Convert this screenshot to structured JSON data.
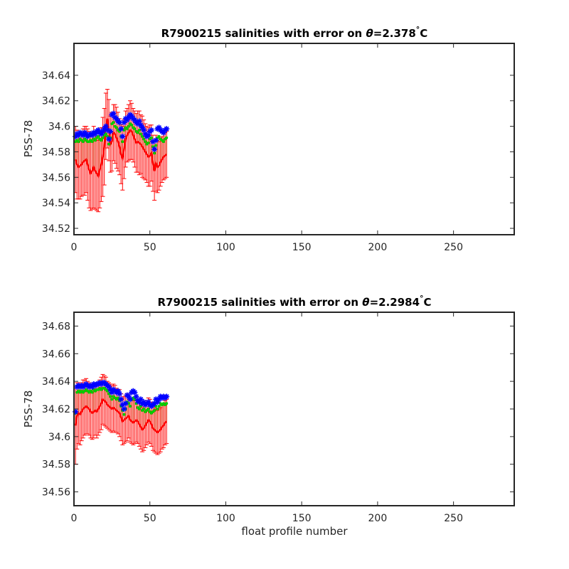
{
  "chart_data": [
    {
      "type": "scatter",
      "title_prefix": "R7900215 salinities with error on ",
      "title_symbol": "θ",
      "title_value": "=2.378",
      "title_unit": "C",
      "xlabel": "",
      "ylabel": "PSS-78",
      "xlim": [
        0,
        290
      ],
      "ylim": [
        34.515,
        34.665
      ],
      "xticks": [
        0,
        50,
        100,
        150,
        200,
        250
      ],
      "xtick_labels": [
        "0",
        "50",
        "100",
        "150",
        "200",
        "250"
      ],
      "yticks": [
        34.52,
        34.54,
        34.56,
        34.58,
        34.6,
        34.62,
        34.64
      ],
      "ytick_labels": [
        "34.52",
        "34.54",
        "34.56",
        "34.58",
        "34.6",
        "34.62",
        "34.64"
      ],
      "grid": false,
      "x": [
        1,
        2,
        3,
        4,
        5,
        6,
        7,
        8,
        9,
        10,
        11,
        12,
        13,
        14,
        15,
        16,
        17,
        18,
        19,
        20,
        21,
        22,
        23,
        24,
        25,
        26,
        27,
        28,
        29,
        30,
        31,
        32,
        33,
        34,
        35,
        36,
        37,
        38,
        39,
        40,
        41,
        42,
        43,
        44,
        45,
        46,
        47,
        48,
        49,
        50,
        51,
        52,
        53,
        54,
        55,
        56,
        57,
        58,
        59,
        60,
        61
      ],
      "series": [
        {
          "color": "#0000ff",
          "marker": "asterisk",
          "values": [
            34.592,
            34.594,
            34.593,
            34.595,
            34.594,
            34.593,
            34.595,
            34.594,
            34.592,
            34.593,
            34.594,
            34.593,
            34.595,
            34.594,
            34.596,
            34.597,
            34.595,
            34.594,
            34.596,
            34.598,
            34.6,
            34.597,
            34.59,
            34.596,
            34.609,
            34.61,
            34.607,
            34.606,
            34.604,
            34.603,
            34.598,
            34.592,
            34.603,
            34.606,
            34.605,
            34.607,
            34.609,
            34.608,
            34.606,
            34.605,
            34.603,
            34.602,
            34.604,
            34.601,
            34.599,
            34.597,
            34.594,
            34.592,
            34.593,
            34.596,
            34.597,
            34.588,
            34.582,
            34.589,
            34.598,
            34.599,
            34.597,
            34.596,
            34.595,
            34.597,
            34.598
          ]
        },
        {
          "color": "#00cc00",
          "marker": "dot",
          "values": [
            34.588,
            34.589,
            34.588,
            34.59,
            34.589,
            34.588,
            34.59,
            34.589,
            34.588,
            34.588,
            34.589,
            34.588,
            34.59,
            34.589,
            34.591,
            34.592,
            34.59,
            34.589,
            34.591,
            34.593,
            34.594,
            34.592,
            34.586,
            34.591,
            34.602,
            34.603,
            34.6,
            34.599,
            34.597,
            34.596,
            34.592,
            34.588,
            34.597,
            34.599,
            34.598,
            34.6,
            34.602,
            34.601,
            34.599,
            34.598,
            34.596,
            34.595,
            34.597,
            34.594,
            34.592,
            34.59,
            34.588,
            34.586,
            34.587,
            34.59,
            34.591,
            34.584,
            34.579,
            34.585,
            34.591,
            34.592,
            34.59,
            34.589,
            34.588,
            34.59,
            34.591
          ]
        },
        {
          "color": "#ff0000",
          "marker": "line",
          "values": [
            34.574,
            34.57,
            34.568,
            34.569,
            34.57,
            34.572,
            34.573,
            34.574,
            34.57,
            34.566,
            34.563,
            34.565,
            34.568,
            34.565,
            34.563,
            34.561,
            34.566,
            34.57,
            34.576,
            34.584,
            34.6,
            34.606,
            34.597,
            34.586,
            34.588,
            34.595,
            34.594,
            34.591,
            34.588,
            34.584,
            34.578,
            34.575,
            34.582,
            34.59,
            34.593,
            34.595,
            34.597,
            34.596,
            34.593,
            34.59,
            34.587,
            34.588,
            34.587,
            34.586,
            34.584,
            34.582,
            34.58,
            34.578,
            34.576,
            34.577,
            34.579,
            34.571,
            34.565,
            34.571,
            34.568,
            34.569,
            34.572,
            34.574,
            34.576,
            34.577,
            34.578
          ],
          "error": [
            0.026,
            0.027,
            0.025,
            0.026,
            0.025,
            0.026,
            0.027,
            0.026,
            0.028,
            0.03,
            0.029,
            0.03,
            0.032,
            0.03,
            0.029,
            0.028,
            0.03,
            0.029,
            0.031,
            0.03,
            0.026,
            0.023,
            0.024,
            0.022,
            0.023,
            0.022,
            0.023,
            0.024,
            0.023,
            0.022,
            0.023,
            0.025,
            0.023,
            0.022,
            0.021,
            0.022,
            0.023,
            0.022,
            0.021,
            0.022,
            0.023,
            0.024,
            0.025,
            0.023,
            0.024,
            0.023,
            0.022,
            0.022,
            0.023,
            0.024,
            0.022,
            0.022,
            0.023,
            0.022,
            0.02,
            0.019,
            0.019,
            0.018,
            0.018,
            0.018,
            0.018
          ]
        }
      ]
    },
    {
      "type": "scatter",
      "title_prefix": "R7900215 salinities with error on ",
      "title_symbol": "θ",
      "title_value": "=2.2984",
      "title_unit": "C",
      "xlabel": "float profile number",
      "ylabel": "PSS-78",
      "xlim": [
        0,
        290
      ],
      "ylim": [
        34.55,
        34.69
      ],
      "xticks": [
        0,
        50,
        100,
        150,
        200,
        250
      ],
      "xtick_labels": [
        "0",
        "50",
        "100",
        "150",
        "200",
        "250"
      ],
      "yticks": [
        34.56,
        34.58,
        34.6,
        34.62,
        34.64,
        34.66,
        34.68
      ],
      "ytick_labels": [
        "34.56",
        "34.58",
        "34.6",
        "34.62",
        "34.64",
        "34.66",
        "34.68"
      ],
      "grid": false,
      "x": [
        1,
        2,
        3,
        4,
        5,
        6,
        7,
        8,
        9,
        10,
        11,
        12,
        13,
        14,
        15,
        16,
        17,
        18,
        19,
        20,
        21,
        22,
        23,
        24,
        25,
        26,
        27,
        28,
        29,
        30,
        31,
        32,
        33,
        34,
        35,
        36,
        37,
        38,
        39,
        40,
        41,
        42,
        43,
        44,
        45,
        46,
        47,
        48,
        49,
        50,
        51,
        52,
        53,
        54,
        55,
        56,
        57,
        58,
        59,
        60,
        61
      ],
      "series": [
        {
          "color": "#0000ff",
          "marker": "asterisk",
          "values": [
            34.618,
            34.636,
            34.637,
            34.636,
            34.637,
            34.636,
            34.637,
            34.638,
            34.637,
            34.636,
            34.637,
            34.636,
            34.638,
            34.637,
            34.638,
            34.638,
            34.639,
            34.638,
            34.639,
            34.639,
            34.638,
            34.637,
            34.636,
            34.634,
            34.632,
            34.634,
            34.633,
            34.632,
            34.633,
            34.631,
            34.627,
            34.623,
            34.62,
            34.624,
            34.63,
            34.629,
            34.627,
            34.632,
            34.633,
            34.632,
            34.629,
            34.626,
            34.625,
            34.627,
            34.624,
            34.625,
            34.623,
            34.624,
            34.625,
            34.623,
            34.622,
            34.623,
            34.624,
            34.627,
            34.625,
            34.627,
            34.629,
            34.628,
            34.629,
            34.628,
            34.629
          ]
        },
        {
          "color": "#00cc00",
          "marker": "dot",
          "values": [
            34.617,
            34.632,
            34.633,
            34.632,
            34.633,
            34.632,
            34.633,
            34.634,
            34.633,
            34.632,
            34.633,
            34.632,
            34.634,
            34.633,
            34.634,
            34.634,
            34.635,
            34.634,
            34.635,
            34.635,
            34.634,
            34.633,
            34.631,
            34.629,
            34.627,
            34.629,
            34.628,
            34.627,
            34.628,
            34.626,
            34.622,
            34.619,
            34.616,
            34.62,
            34.625,
            34.624,
            34.622,
            34.627,
            34.628,
            34.627,
            34.624,
            34.621,
            34.62,
            34.622,
            34.619,
            34.62,
            34.618,
            34.619,
            34.62,
            34.618,
            34.617,
            34.618,
            34.619,
            34.622,
            34.62,
            34.622,
            34.624,
            34.623,
            34.624,
            34.623,
            34.624
          ]
        },
        {
          "color": "#ff0000",
          "marker": "line",
          "values": [
            34.608,
            34.615,
            34.617,
            34.616,
            34.618,
            34.62,
            34.621,
            34.622,
            34.621,
            34.62,
            34.618,
            34.617,
            34.618,
            34.619,
            34.618,
            34.62,
            34.622,
            34.624,
            34.627,
            34.626,
            34.625,
            34.623,
            34.622,
            34.621,
            34.62,
            34.621,
            34.62,
            34.619,
            34.618,
            34.617,
            34.614,
            34.611,
            34.612,
            34.613,
            34.614,
            34.615,
            34.612,
            34.611,
            34.61,
            34.611,
            34.612,
            34.611,
            34.609,
            34.607,
            34.605,
            34.606,
            34.608,
            34.61,
            34.612,
            34.611,
            34.609,
            34.606,
            34.605,
            34.604,
            34.603,
            34.604,
            34.605,
            34.607,
            34.608,
            34.61,
            34.611
          ],
          "error": [
            0.028,
            0.024,
            0.022,
            0.022,
            0.021,
            0.021,
            0.02,
            0.02,
            0.019,
            0.019,
            0.019,
            0.019,
            0.019,
            0.018,
            0.019,
            0.019,
            0.019,
            0.019,
            0.018,
            0.018,
            0.018,
            0.017,
            0.017,
            0.017,
            0.017,
            0.017,
            0.017,
            0.016,
            0.016,
            0.017,
            0.017,
            0.017,
            0.017,
            0.017,
            0.017,
            0.016,
            0.016,
            0.016,
            0.016,
            0.016,
            0.016,
            0.016,
            0.016,
            0.016,
            0.016,
            0.016,
            0.016,
            0.016,
            0.016,
            0.016,
            0.016,
            0.016,
            0.016,
            0.016,
            0.016,
            0.016,
            0.016,
            0.016,
            0.016,
            0.016,
            0.016
          ]
        }
      ]
    }
  ]
}
